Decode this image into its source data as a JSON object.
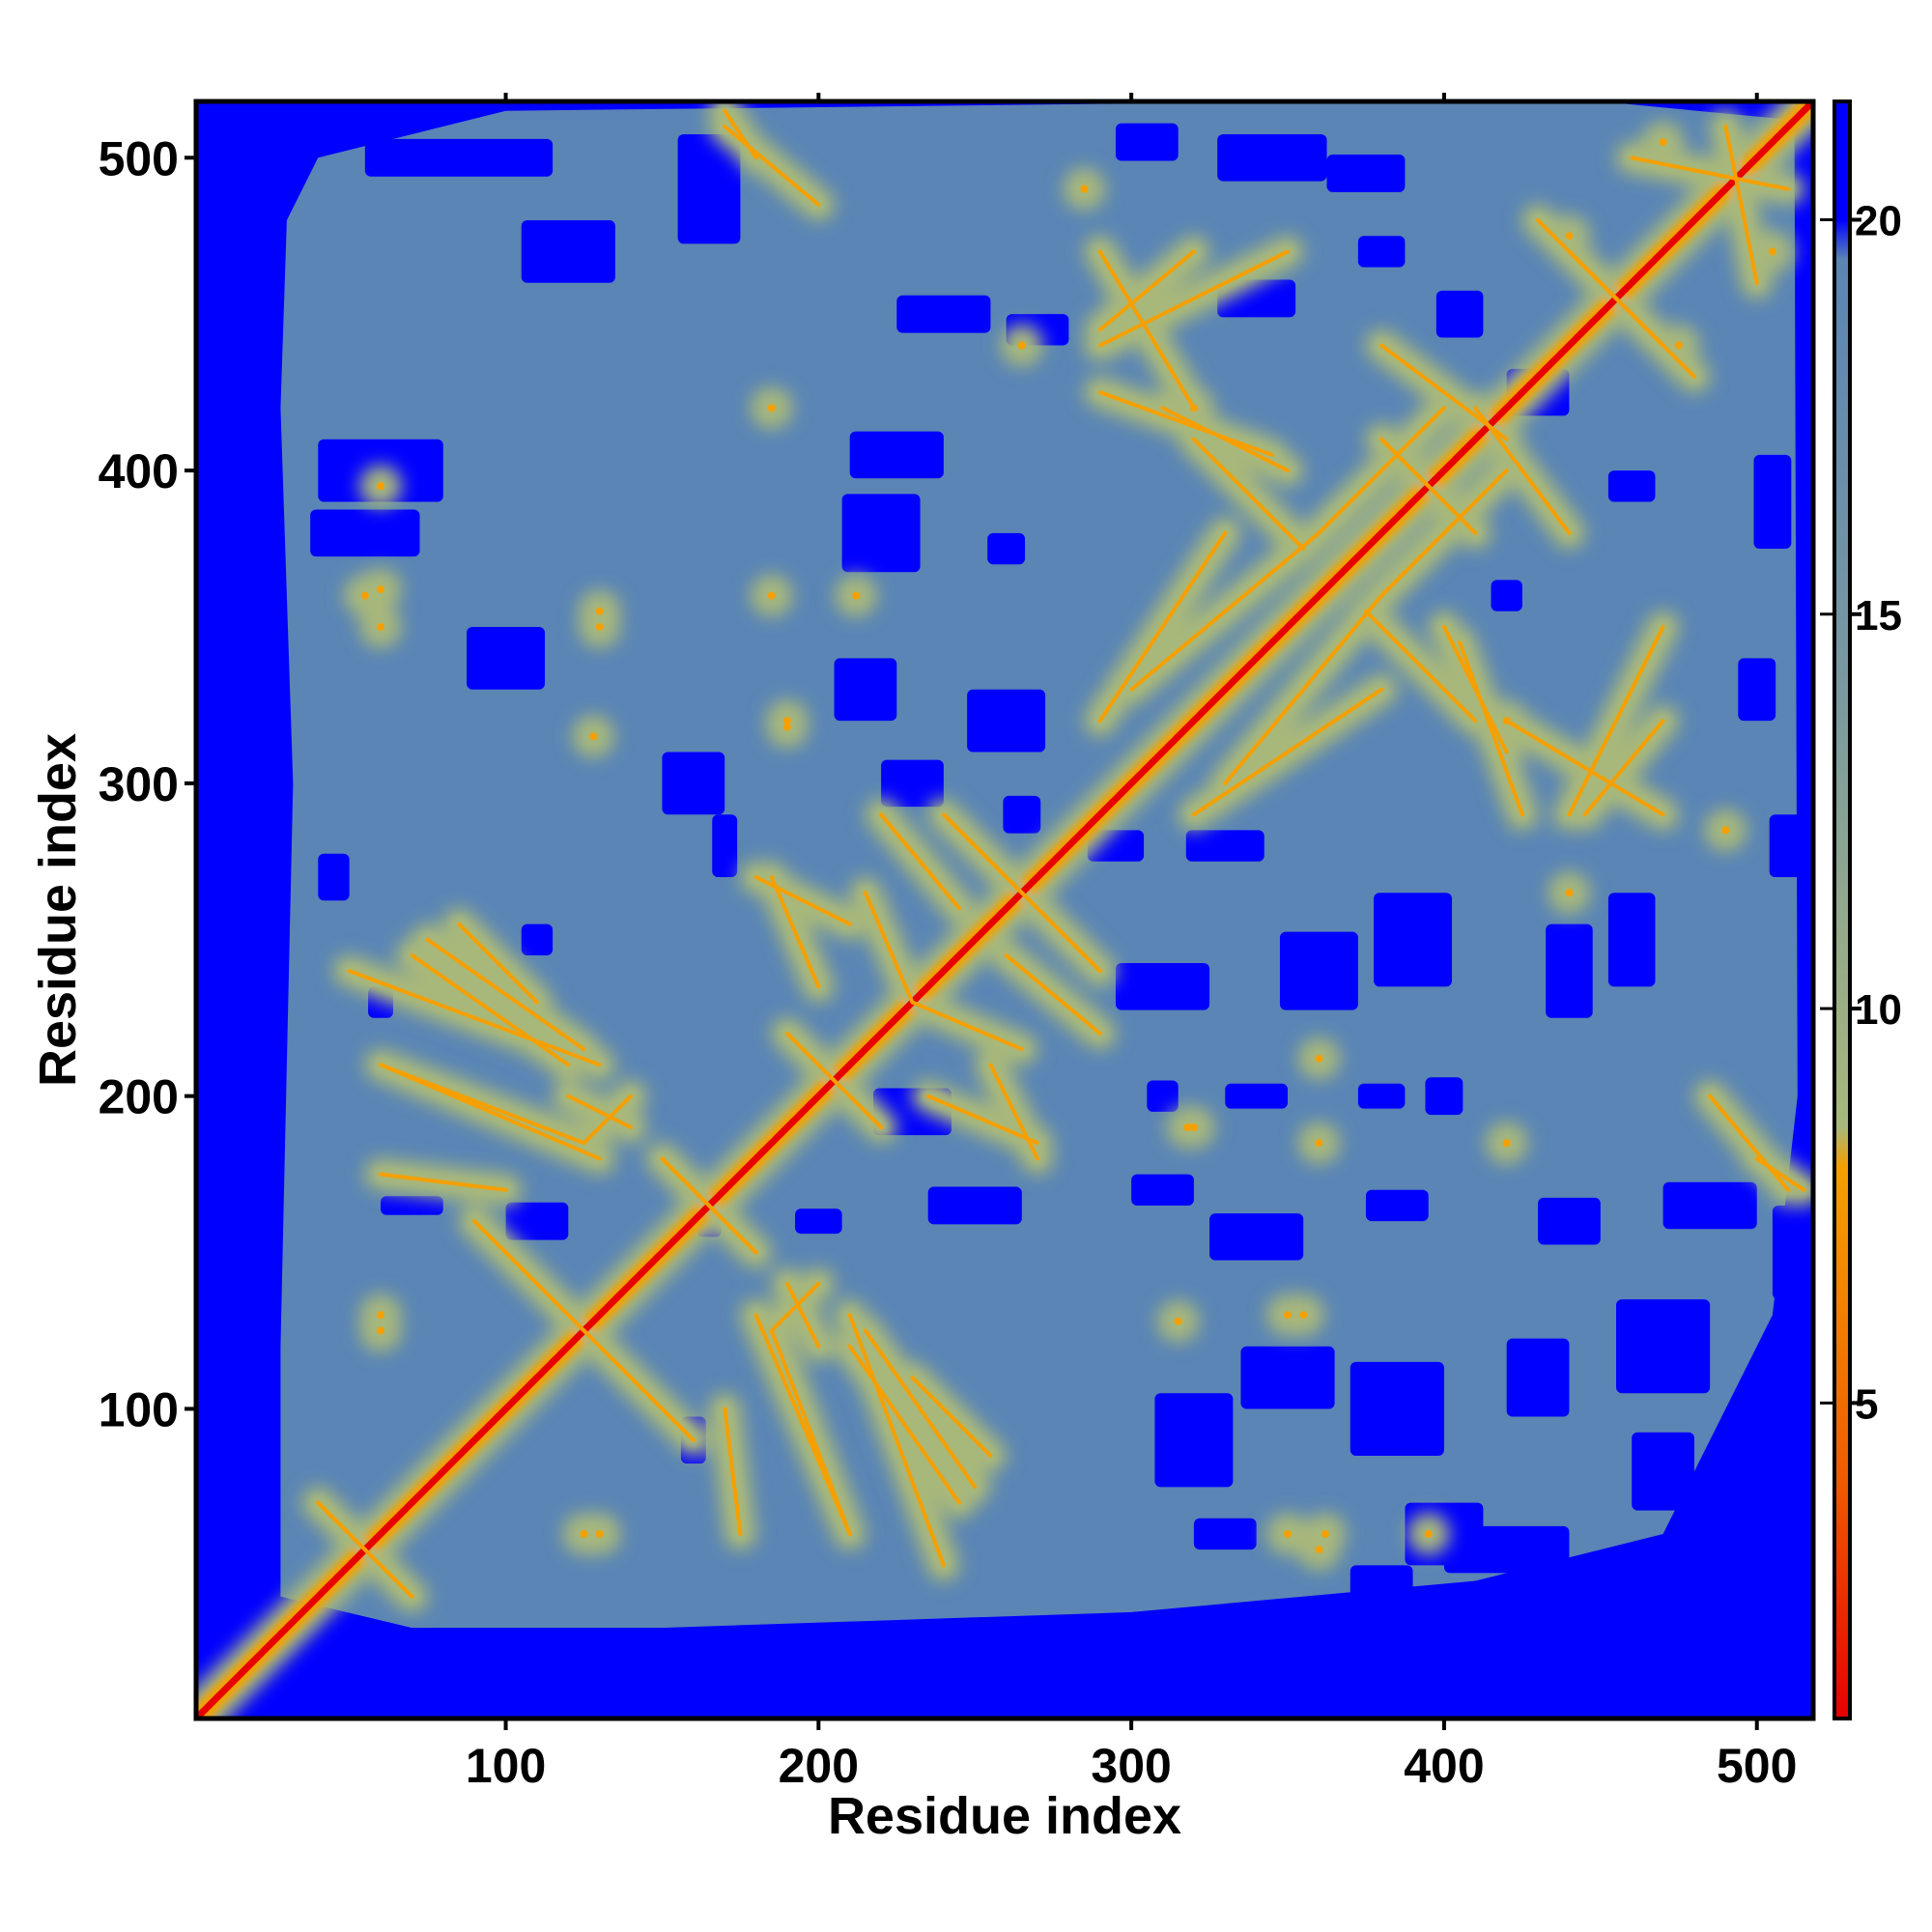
{
  "chart_data": {
    "type": "heatmap",
    "title": "",
    "xlabel": "Residue index",
    "ylabel": "Residue index",
    "xlim": [
      1,
      518
    ],
    "ylim": [
      1,
      518
    ],
    "x_ticks": [
      100,
      200,
      300,
      400,
      500
    ],
    "y_ticks": [
      100,
      200,
      300,
      400,
      500
    ],
    "colorbar": {
      "ticks": [
        5,
        10,
        15,
        20
      ],
      "range": [
        1,
        21.5
      ],
      "stops": [
        {
          "value": 1,
          "color": "#e60000"
        },
        {
          "value": 4,
          "color": "#f05a00"
        },
        {
          "value": 8,
          "color": "#f5a000"
        },
        {
          "value": 8.5,
          "color": "#a8b87a"
        },
        {
          "value": 14,
          "color": "#7a99a0"
        },
        {
          "value": 19.5,
          "color": "#5a85b5"
        },
        {
          "value": 20,
          "color": "#0000ff"
        }
      ]
    },
    "colors": {
      "background_far": "#0000ff",
      "bulk": "#5a85b5",
      "contact_mid": "#a8b87a",
      "contact_close": "#f5a000",
      "diagonal": "#e60000"
    },
    "contact_features": [
      {
        "type": "antidiagonal",
        "from": [
          40,
          70
        ],
        "to": [
          70,
          40
        ]
      },
      {
        "type": "antidiagonal",
        "from": [
          90,
          160
        ],
        "to": [
          160,
          90
        ]
      },
      {
        "type": "antidiagonal",
        "from": [
          150,
          180
        ],
        "to": [
          180,
          150
        ]
      },
      {
        "type": "antidiagonal",
        "from": [
          190,
          220
        ],
        "to": [
          220,
          190
        ]
      },
      {
        "type": "antidiagonal",
        "from": [
          240,
          290
        ],
        "to": [
          290,
          240
        ]
      },
      {
        "type": "antidiagonal",
        "from": [
          380,
          410
        ],
        "to": [
          410,
          380
        ]
      },
      {
        "type": "antidiagonal",
        "from": [
          440,
          470
        ],
        "to": [
          470,
          440
        ]
      },
      {
        "type": "parallel",
        "from": [
          50,
          240
        ],
        "to": [
          130,
          210
        ]
      },
      {
        "type": "parallel",
        "from": [
          60,
          210
        ],
        "to": [
          125,
          185
        ]
      },
      {
        "type": "parallel",
        "from": [
          75,
          250
        ],
        "to": [
          125,
          215
        ]
      },
      {
        "type": "parallel",
        "from": [
          60,
          175
        ],
        "to": [
          100,
          170
        ]
      },
      {
        "type": "parallel",
        "from": [
          140,
          200
        ],
        "to": [
          125,
          185
        ]
      },
      {
        "type": "parallel",
        "from": [
          190,
          140
        ],
        "to": [
          200,
          120
        ]
      },
      {
        "type": "parallel",
        "from": [
          180,
          130
        ],
        "to": [
          210,
          60
        ]
      },
      {
        "type": "parallel",
        "from": [
          210,
          120
        ],
        "to": [
          245,
          70
        ]
      },
      {
        "type": "parallel",
        "from": [
          230,
          110
        ],
        "to": [
          255,
          85
        ]
      },
      {
        "type": "parallel",
        "from": [
          180,
          270
        ],
        "to": [
          210,
          255
        ]
      },
      {
        "type": "parallel",
        "from": [
          260,
          245
        ],
        "to": [
          290,
          220
        ]
      },
      {
        "type": "parallel",
        "from": [
          235,
          200
        ],
        "to": [
          270,
          185
        ]
      },
      {
        "type": "parallel",
        "from": [
          230,
          230
        ],
        "to": [
          265,
          215
        ]
      },
      {
        "type": "parallel",
        "from": [
          290,
          440
        ],
        "to": [
          350,
          470
        ]
      },
      {
        "type": "parallel",
        "from": [
          310,
          420
        ],
        "to": [
          350,
          400
        ]
      },
      {
        "type": "parallel",
        "from": [
          320,
          290
        ],
        "to": [
          380,
          330
        ]
      },
      {
        "type": "parallel",
        "from": [
          300,
          330
        ],
        "to": [
          360,
          380
        ]
      },
      {
        "type": "parallel",
        "from": [
          405,
          345
        ],
        "to": [
          425,
          290
        ]
      },
      {
        "type": "parallel",
        "from": [
          420,
          320
        ],
        "to": [
          470,
          290
        ]
      },
      {
        "type": "parallel",
        "from": [
          445,
          290
        ],
        "to": [
          470,
          320
        ]
      },
      {
        "type": "parallel",
        "from": [
          375,
          355
        ],
        "to": [
          410,
          320
        ]
      },
      {
        "type": "parallel",
        "from": [
          410,
          420
        ],
        "to": [
          440,
          380
        ]
      },
      {
        "type": "parallel",
        "from": [
          360,
          380
        ],
        "to": [
          400,
          420
        ]
      },
      {
        "type": "parallel",
        "from": [
          170,
          515
        ],
        "to": [
          180,
          500
        ]
      },
      {
        "type": "parallel",
        "from": [
          460,
          500
        ],
        "to": [
          510,
          490
        ]
      },
      {
        "type": "parallel",
        "from": [
          430,
          480
        ],
        "to": [
          470,
          440
        ]
      },
      {
        "type": "parallel",
        "from": [
          485,
          200
        ],
        "to": [
          510,
          170
        ]
      }
    ],
    "contact_spots": [
      [
        60,
        395
      ],
      [
        55,
        360
      ],
      [
        130,
        355
      ],
      [
        128,
        315
      ],
      [
        190,
        318
      ],
      [
        212,
        360
      ],
      [
        350,
        130
      ],
      [
        395,
        60
      ],
      [
        350,
        60
      ],
      [
        362,
        60
      ],
      [
        60,
        130
      ],
      [
        125,
        60
      ],
      [
        360,
        185
      ],
      [
        320,
        190
      ],
      [
        420,
        185
      ],
      [
        440,
        265
      ],
      [
        320,
        420
      ],
      [
        265,
        440
      ],
      [
        285,
        490
      ],
      [
        505,
        470
      ],
      [
        475,
        440
      ],
      [
        490,
        285
      ]
    ],
    "far_blocks": [
      [
        60,
        400,
        40,
        20
      ],
      [
        55,
        380,
        35,
        15
      ],
      [
        100,
        340,
        25,
        20
      ],
      [
        85,
        500,
        60,
        12
      ],
      [
        120,
        470,
        30,
        20
      ],
      [
        165,
        490,
        20,
        35
      ],
      [
        160,
        300,
        20,
        20
      ],
      [
        110,
        250,
        10,
        10
      ],
      [
        240,
        450,
        30,
        12
      ],
      [
        225,
        405,
        30,
        15
      ],
      [
        220,
        380,
        25,
        25
      ],
      [
        270,
        445,
        20,
        10
      ],
      [
        260,
        375,
        12,
        10
      ],
      [
        305,
        505,
        20,
        12
      ],
      [
        345,
        500,
        35,
        15
      ],
      [
        340,
        455,
        25,
        12
      ],
      [
        375,
        495,
        25,
        12
      ],
      [
        405,
        450,
        15,
        15
      ],
      [
        420,
        360,
        10,
        10
      ],
      [
        380,
        470,
        15,
        10
      ],
      [
        430,
        425,
        20,
        15
      ],
      [
        460,
        395,
        15,
        10
      ],
      [
        505,
        390,
        12,
        30
      ],
      [
        500,
        330,
        12,
        20
      ],
      [
        510,
        280,
        12,
        20
      ],
      [
        295,
        280,
        18,
        10
      ],
      [
        330,
        280,
        25,
        10
      ],
      [
        360,
        240,
        25,
        25
      ],
      [
        310,
        235,
        30,
        15
      ],
      [
        390,
        250,
        25,
        30
      ],
      [
        440,
        240,
        15,
        30
      ],
      [
        460,
        250,
        15,
        30
      ],
      [
        400,
        200,
        12,
        12
      ],
      [
        340,
        200,
        20,
        8
      ],
      [
        310,
        200,
        10,
        10
      ],
      [
        380,
        200,
        15,
        8
      ],
      [
        440,
        160,
        20,
        15
      ],
      [
        485,
        165,
        30,
        15
      ],
      [
        510,
        150,
        10,
        30
      ],
      [
        385,
        165,
        20,
        10
      ],
      [
        340,
        155,
        30,
        15
      ],
      [
        310,
        170,
        20,
        10
      ],
      [
        470,
        120,
        30,
        30
      ],
      [
        430,
        110,
        20,
        25
      ],
      [
        385,
        100,
        30,
        30
      ],
      [
        350,
        110,
        30,
        20
      ],
      [
        320,
        90,
        25,
        30
      ],
      [
        400,
        60,
        25,
        20
      ],
      [
        470,
        80,
        20,
        25
      ],
      [
        505,
        90,
        10,
        40
      ],
      [
        330,
        60,
        20,
        10
      ],
      [
        380,
        45,
        20,
        10
      ],
      [
        420,
        55,
        40,
        15
      ],
      [
        470,
        50,
        20,
        10
      ],
      [
        160,
        90,
        8,
        15
      ],
      [
        165,
        160,
        8,
        10
      ],
      [
        110,
        160,
        20,
        12
      ],
      [
        70,
        165,
        20,
        6
      ],
      [
        250,
        165,
        30,
        12
      ],
      [
        200,
        160,
        15,
        8
      ],
      [
        45,
        270,
        10,
        15
      ],
      [
        60,
        230,
        8,
        10
      ],
      [
        230,
        300,
        20,
        15
      ],
      [
        260,
        320,
        25,
        20
      ],
      [
        215,
        330,
        20,
        20
      ],
      [
        265,
        290,
        12,
        12
      ],
      [
        230,
        195,
        25,
        15
      ],
      [
        170,
        280,
        8,
        20
      ]
    ]
  }
}
